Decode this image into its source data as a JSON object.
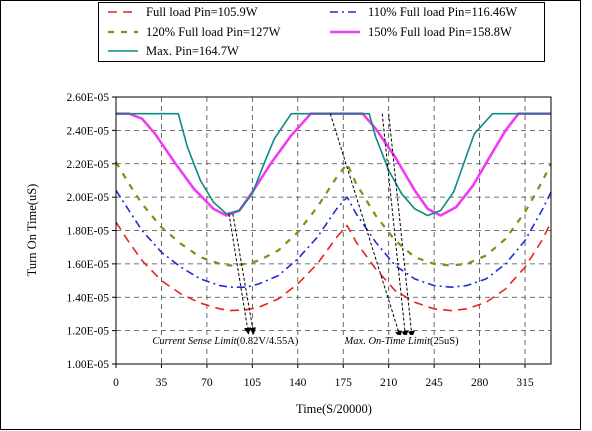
{
  "chart_data": {
    "type": "line",
    "title": "",
    "xlabel": "Time(S/20000)",
    "ylabel": "Turn On Time(uS)",
    "xlim": [
      0,
      335
    ],
    "ylim": [
      1e-05,
      2.6e-05
    ],
    "x_ticks": [
      0,
      35,
      70,
      105,
      140,
      175,
      210,
      245,
      280,
      315
    ],
    "x_tick_labels": [
      "0",
      "35",
      "70",
      "105",
      "140",
      "175",
      "210",
      "245",
      "280",
      "315"
    ],
    "y_ticks": [
      1e-05,
      1.2e-05,
      1.4e-05,
      1.6e-05,
      1.8e-05,
      2e-05,
      2.2e-05,
      2.4e-05,
      2.6e-05
    ],
    "y_tick_labels": [
      "1.00E-05",
      "1.20E-05",
      "1.40E-05",
      "1.60E-05",
      "1.80E-05",
      "2.00E-05",
      "2.20E-05",
      "2.40E-05",
      "2.60E-05"
    ],
    "grid": true,
    "grid_style": "dashed",
    "legend_position": "top",
    "series": [
      {
        "name": "Full load Pin=105.9W",
        "color": "#e8231c",
        "dash": "dash",
        "x": [
          0,
          10,
          20,
          35,
          50,
          65,
          80,
          88,
          100,
          110,
          125,
          140,
          155,
          170,
          178,
          185,
          200,
          215,
          230,
          245,
          258,
          270,
          285,
          300,
          315,
          328,
          335
        ],
        "y": [
          1.85e-05,
          1.73e-05,
          1.62e-05,
          1.5e-05,
          1.42e-05,
          1.365e-05,
          1.33e-05,
          1.32e-05,
          1.325e-05,
          1.34e-05,
          1.39e-05,
          1.48e-05,
          1.6e-05,
          1.76e-05,
          1.83e-05,
          1.73e-05,
          1.57e-05,
          1.44e-05,
          1.37e-05,
          1.33e-05,
          1.32e-05,
          1.33e-05,
          1.37e-05,
          1.45e-05,
          1.58e-05,
          1.74e-05,
          1.85e-05
        ]
      },
      {
        "name": "110% Full load Pin=116.46W",
        "color": "#1d2fd6",
        "dash": "dashdot",
        "x": [
          0,
          10,
          20,
          35,
          50,
          65,
          80,
          88,
          100,
          110,
          125,
          140,
          155,
          170,
          178,
          185,
          200,
          215,
          230,
          245,
          258,
          270,
          285,
          300,
          315,
          328,
          335
        ],
        "y": [
          2.04e-05,
          1.92e-05,
          1.8e-05,
          1.67e-05,
          1.58e-05,
          1.51e-05,
          1.47e-05,
          1.46e-05,
          1.46e-05,
          1.48e-05,
          1.53e-05,
          1.63e-05,
          1.76e-05,
          1.93e-05,
          2e-05,
          1.9e-05,
          1.73e-05,
          1.59e-05,
          1.51e-05,
          1.47e-05,
          1.46e-05,
          1.47e-05,
          1.51e-05,
          1.6e-05,
          1.74e-05,
          1.92e-05,
          2.03e-05
        ]
      },
      {
        "name": "120% Full load Pin=127W",
        "color": "#8a8a14",
        "dash": "dash-wide",
        "x": [
          0,
          10,
          20,
          35,
          50,
          65,
          80,
          88,
          100,
          110,
          125,
          140,
          155,
          170,
          178,
          185,
          200,
          215,
          230,
          245,
          258,
          270,
          285,
          300,
          315,
          328,
          335
        ],
        "y": [
          2.21e-05,
          2.08e-05,
          1.96e-05,
          1.82e-05,
          1.72e-05,
          1.64e-05,
          1.6e-05,
          1.59e-05,
          1.6e-05,
          1.62e-05,
          1.68e-05,
          1.79e-05,
          1.94e-05,
          2.12e-05,
          2.2e-05,
          2.08e-05,
          1.89e-05,
          1.74e-05,
          1.64e-05,
          1.6e-05,
          1.59e-05,
          1.6e-05,
          1.65e-05,
          1.75e-05,
          1.91e-05,
          2.09e-05,
          2.2e-05
        ]
      },
      {
        "name": "150% Full load Pin=158.8W",
        "color": "#f03cf0",
        "dash": "solid-thick",
        "x": [
          0,
          10,
          20,
          30,
          45,
          60,
          75,
          85,
          95,
          105,
          120,
          135,
          150,
          163,
          175,
          190,
          200,
          215,
          230,
          240,
          250,
          262,
          275,
          290,
          300,
          310,
          320,
          335
        ],
        "y": [
          2.5e-05,
          2.5e-05,
          2.47e-05,
          2.38e-05,
          2.21e-05,
          2.05e-05,
          1.93e-05,
          1.89e-05,
          1.92e-05,
          2.03e-05,
          2.21e-05,
          2.37e-05,
          2.5e-05,
          2.5e-05,
          2.5e-05,
          2.5e-05,
          2.41e-05,
          2.24e-05,
          2.04e-05,
          1.93e-05,
          1.89e-05,
          1.94e-05,
          2.07e-05,
          2.27e-05,
          2.4e-05,
          2.5e-05,
          2.5e-05,
          2.5e-05
        ]
      },
      {
        "name": "Max. Pin=164.7W",
        "color": "#0e8a82",
        "dash": "solid",
        "x": [
          0,
          20,
          40,
          48,
          55,
          65,
          75,
          85,
          95,
          105,
          115,
          122,
          135,
          175,
          195,
          200,
          210,
          220,
          230,
          240,
          250,
          260,
          270,
          276,
          290,
          320,
          335
        ],
        "y": [
          2.5e-05,
          2.5e-05,
          2.5e-05,
          2.5e-05,
          2.3e-05,
          2.1e-05,
          1.97e-05,
          1.9e-05,
          1.92e-05,
          2.02e-05,
          2.22e-05,
          2.35e-05,
          2.5e-05,
          2.5e-05,
          2.5e-05,
          2.36e-05,
          2.16e-05,
          2.02e-05,
          1.93e-05,
          1.89e-05,
          1.92e-05,
          2.03e-05,
          2.25e-05,
          2.38e-05,
          2.5e-05,
          2.5e-05,
          2.5e-05
        ]
      }
    ],
    "annotations": [
      {
        "text_italic": "Current Sense Limit",
        "text_plain": "(0.82V/4.55A)",
        "label_x": 28,
        "label_y": 1.12e-05,
        "arrows": [
          {
            "from": [
              87,
              1.9e-05
            ],
            "to": [
              102,
              1.18e-05
            ]
          },
          {
            "from": [
              90,
              1.9e-05
            ],
            "to": [
              106,
              1.18e-05
            ]
          }
        ]
      },
      {
        "text_italic": "Max. On-Time Limit",
        "text_plain": "(25uS)",
        "label_x": 176,
        "label_y": 1.12e-05,
        "arrows": [
          {
            "from": [
              165,
              2.5e-05
            ],
            "to": [
              219,
              1.16e-05
            ]
          },
          {
            "from": [
              205,
              2.5e-05
            ],
            "to": [
              223,
              1.16e-05
            ]
          },
          {
            "from": [
              210,
              2.5e-05
            ],
            "to": [
              228,
              1.16e-05
            ]
          }
        ]
      }
    ]
  }
}
